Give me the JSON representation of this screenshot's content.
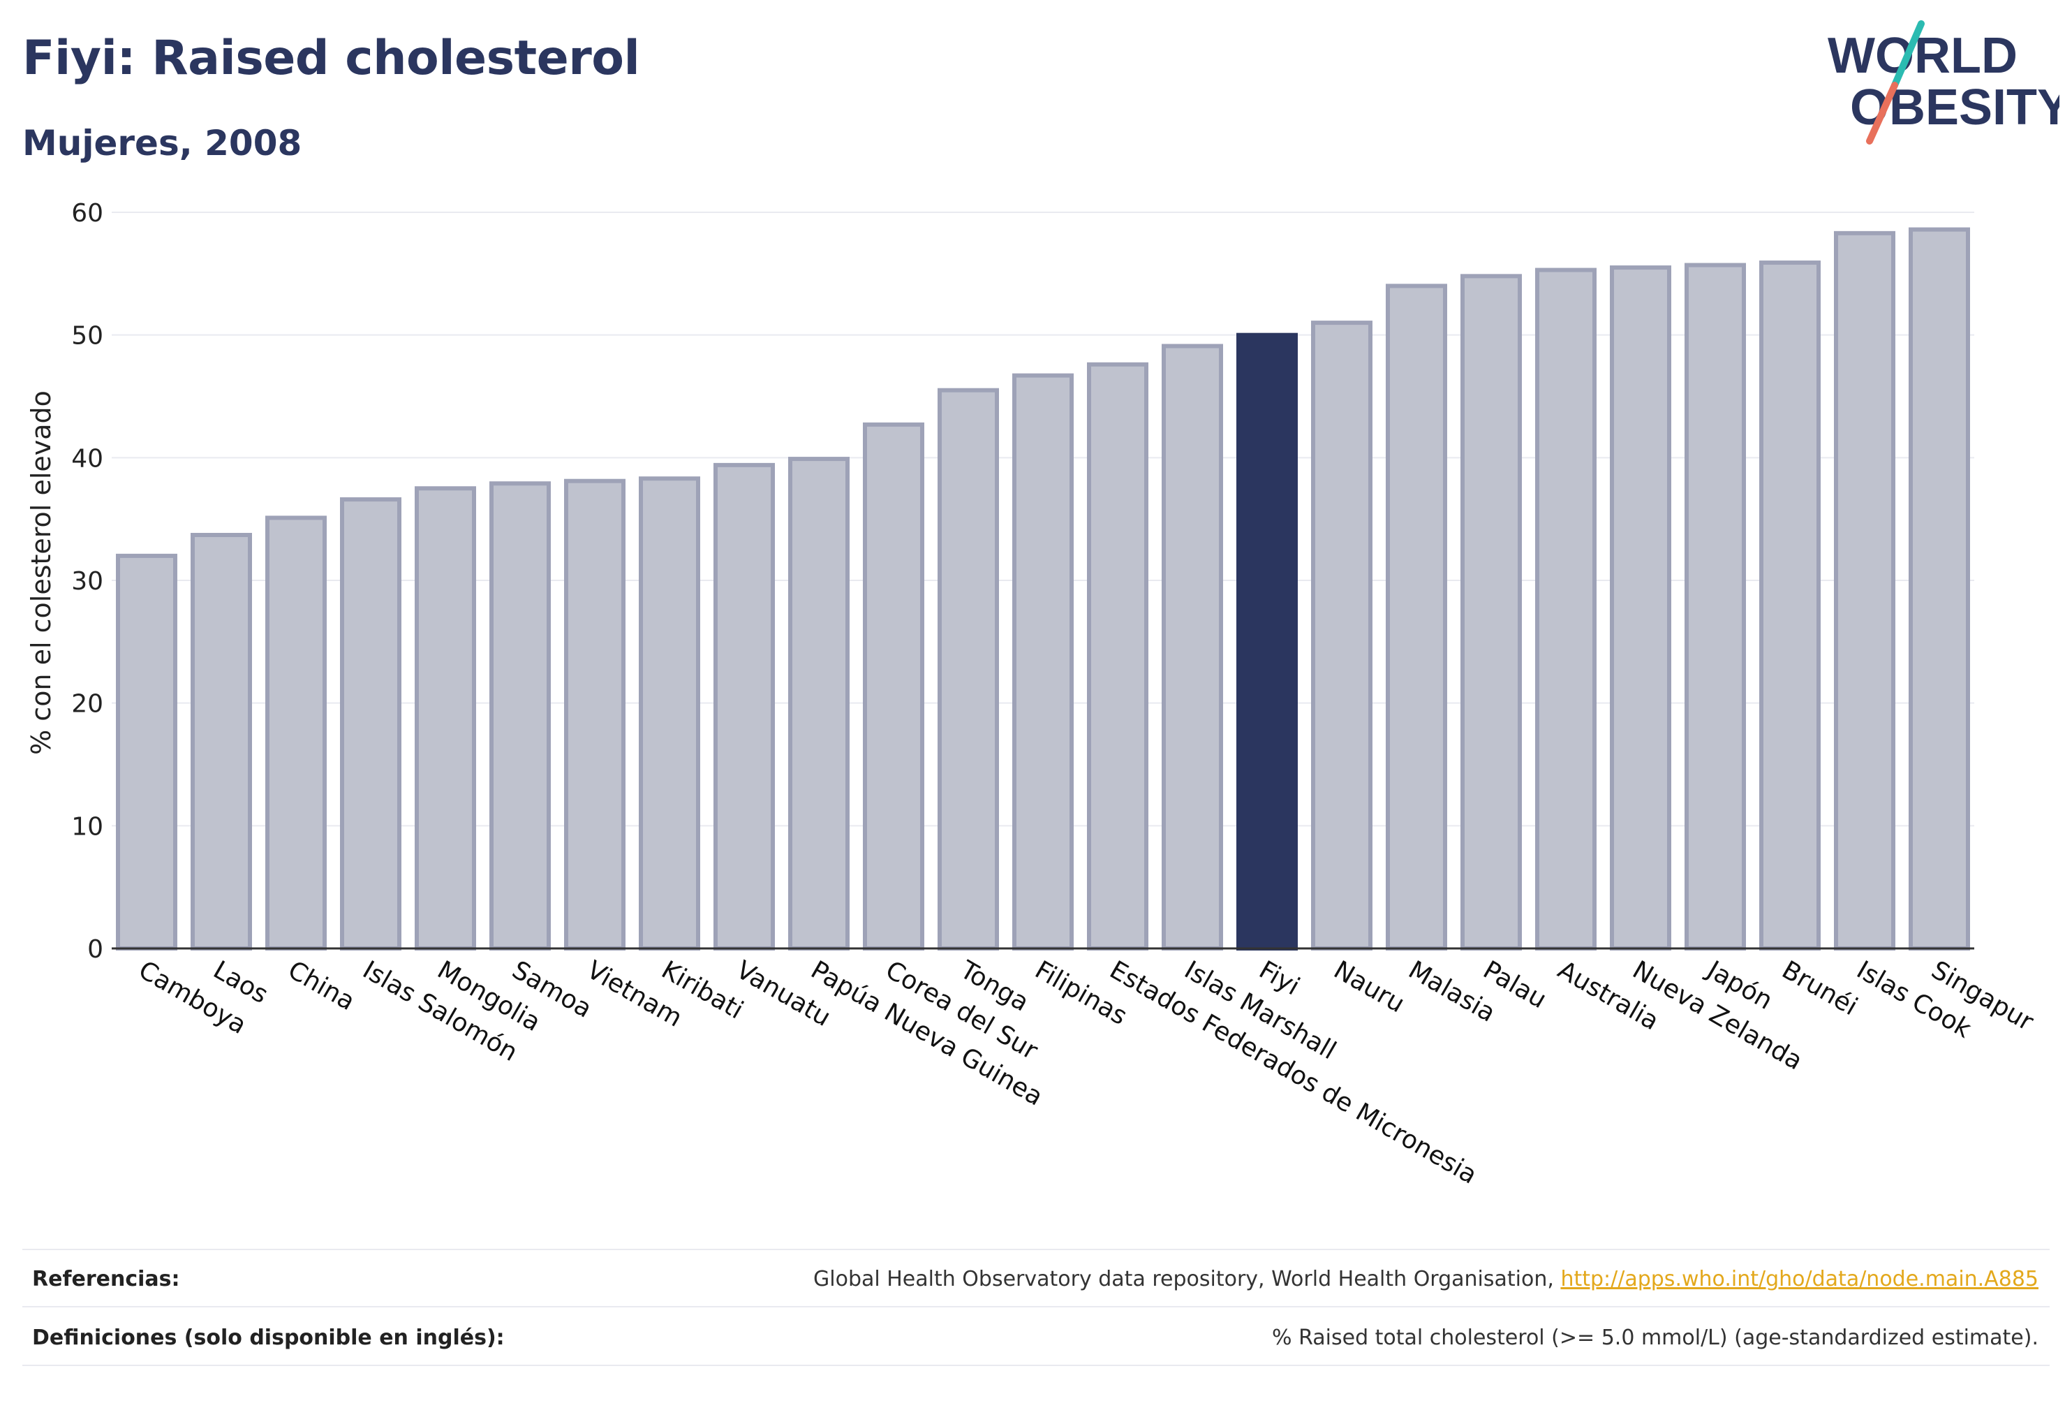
{
  "header": {
    "title": "Fiyi: Raised cholesterol",
    "subtitle": "Mujeres, 2008"
  },
  "logo": {
    "line1": "WORLD",
    "line2": "OBESITY",
    "colors": {
      "text": "#2b365f",
      "slash_top": "#2bbbb1",
      "slash_bottom": "#e8705b"
    }
  },
  "chart_data": {
    "type": "bar",
    "ylabel": "% con el colesterol elevado",
    "xlabel": "",
    "ylim": [
      0,
      60
    ],
    "yticks": [
      0,
      10,
      20,
      30,
      40,
      50,
      60
    ],
    "grid": true,
    "highlight": "Fiyi",
    "colors": {
      "bar": "#bfc2ce",
      "bar_border": "#9ea2b7",
      "highlight": "#2b365f",
      "grid": "#e9eaf0",
      "axis": "#333333"
    },
    "categories": [
      "Camboya",
      "Laos",
      "China",
      "Islas Salomón",
      "Mongolia",
      "Samoa",
      "Vietnam",
      "Kiribati",
      "Vanuatu",
      "Papúa Nueva Guinea",
      "Corea del Sur",
      "Tonga",
      "Filipinas",
      "Estados Federados de Micronesia",
      "Islas Marshall",
      "Fiyi",
      "Nauru",
      "Malasia",
      "Palau",
      "Australia",
      "Nueva Zelanda",
      "Japón",
      "Brunéi",
      "Islas Cook",
      "Singapur"
    ],
    "values": [
      32.0,
      33.7,
      35.1,
      36.6,
      37.5,
      37.9,
      38.1,
      38.3,
      39.4,
      39.9,
      42.7,
      45.5,
      46.7,
      47.6,
      49.1,
      50.0,
      51.0,
      54.0,
      54.8,
      55.3,
      55.5,
      55.7,
      55.9,
      58.3,
      58.6
    ]
  },
  "footer": {
    "refs_label": "Referencias:",
    "refs_text": "Global Health Observatory data repository, World Health Organisation, ",
    "refs_link": "http://apps.who.int/gho/data/node.main.A885",
    "defs_label": "Definiciones (solo disponible en inglés):",
    "defs_text": "% Raised total cholesterol (>= 5.0 mmol/L) (age-standardized estimate)."
  }
}
